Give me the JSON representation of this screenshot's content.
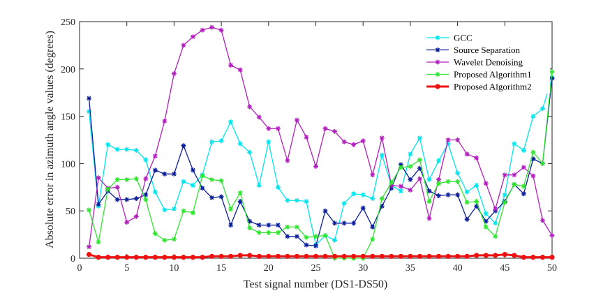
{
  "chart_data": {
    "type": "line",
    "title": "",
    "xlabel": "Test signal number (DS1-DS50)",
    "ylabel": "Absolute error in azimuth angle values (degrees)",
    "xlim": [
      0,
      50
    ],
    "ylim": [
      0,
      250
    ],
    "xticks": [
      0,
      5,
      10,
      15,
      20,
      25,
      30,
      35,
      40,
      45,
      50
    ],
    "yticks": [
      0,
      50,
      100,
      150,
      200,
      250
    ],
    "grid": false,
    "legend_position": "top-right",
    "x": [
      1,
      2,
      3,
      4,
      5,
      6,
      7,
      8,
      9,
      10,
      11,
      12,
      13,
      14,
      15,
      16,
      17,
      18,
      19,
      20,
      21,
      22,
      23,
      24,
      25,
      26,
      27,
      28,
      29,
      30,
      31,
      32,
      33,
      34,
      35,
      36,
      37,
      38,
      39,
      40,
      41,
      42,
      43,
      44,
      45,
      46,
      47,
      48,
      49,
      50
    ],
    "series": [
      {
        "name": "GCC",
        "color": "#00e5ee",
        "marker": "asterisk",
        "values": [
          155,
          55,
          120,
          115,
          115,
          114,
          104,
          70,
          51,
          52,
          81,
          77,
          88,
          123,
          124,
          144,
          121,
          112,
          77,
          123,
          75,
          61,
          61,
          60,
          14,
          24,
          19,
          58,
          68,
          67,
          63,
          109,
          77,
          71,
          110,
          127,
          83,
          103,
          121,
          90,
          70,
          77,
          47,
          37,
          67,
          121,
          114,
          150,
          158,
          191
        ]
      },
      {
        "name": "Source Separation",
        "color": "#0a1e9c",
        "marker": "asterisk",
        "values": [
          169,
          57,
          71,
          62,
          62,
          63,
          67,
          93,
          89,
          89,
          119,
          93,
          74,
          64,
          65,
          35,
          60,
          39,
          35,
          35,
          35,
          23,
          23,
          14,
          13,
          50,
          37,
          37,
          37,
          53,
          33,
          55,
          74,
          99,
          83,
          95,
          71,
          66,
          67,
          67,
          41,
          55,
          39,
          50,
          60,
          78,
          68,
          105,
          100,
          190
        ]
      },
      {
        "name": "Wavelet Denoising",
        "color": "#b21fbd",
        "marker": "asterisk",
        "values": [
          12,
          85,
          74,
          75,
          38,
          44,
          84,
          108,
          145,
          195,
          225,
          234,
          241,
          244,
          241,
          204,
          199,
          160,
          149,
          137,
          137,
          103,
          146,
          128,
          97,
          137,
          134,
          123,
          120,
          124,
          88,
          127,
          77,
          76,
          72,
          84,
          42,
          83,
          125,
          125,
          110,
          106,
          79,
          52,
          88,
          88,
          96,
          87,
          40,
          24
        ]
      },
      {
        "name": "Proposed Algorithm1",
        "color": "#2ee62e",
        "marker": "asterisk",
        "values": [
          51,
          17,
          73,
          83,
          83,
          84,
          62,
          26,
          19,
          20,
          50,
          48,
          87,
          83,
          82,
          52,
          69,
          32,
          27,
          27,
          27,
          33,
          33,
          22,
          23,
          24,
          0,
          0,
          0,
          0,
          20,
          63,
          80,
          96,
          97,
          104,
          60,
          79,
          81,
          81,
          59,
          60,
          33,
          23,
          59,
          78,
          76,
          112,
          100,
          197
        ]
      },
      {
        "name": "Proposed Algorithm2",
        "color": "#ee1111",
        "marker": "dot",
        "values": [
          4,
          1,
          1,
          1,
          1,
          1,
          1,
          1,
          1,
          1,
          1,
          1,
          1,
          2,
          2,
          2,
          3,
          3,
          2,
          2,
          2,
          2,
          2,
          2,
          2,
          2,
          2,
          2,
          2,
          2,
          2,
          2,
          2,
          2,
          2,
          2,
          2,
          2,
          2,
          2,
          2,
          3,
          3,
          3,
          4,
          3,
          1,
          1,
          1,
          1
        ]
      }
    ]
  }
}
